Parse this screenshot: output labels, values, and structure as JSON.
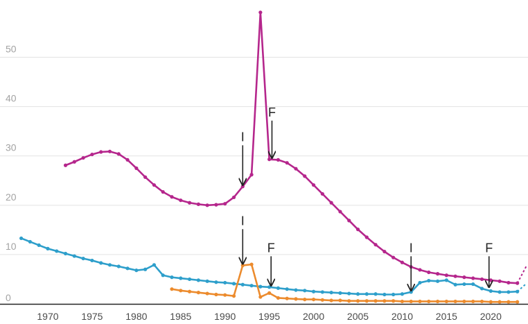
{
  "chart_data": {
    "type": "line",
    "title": "",
    "xlabel": "",
    "ylabel": "",
    "xlim": [
      1965.7,
      2024.2
    ],
    "ylim": [
      0,
      59.5
    ],
    "xticks": [
      1970,
      1975,
      1980,
      1985,
      1990,
      1995,
      2000,
      2005,
      2010,
      2015,
      2020
    ],
    "yticks": [
      0,
      10,
      20,
      30,
      40,
      50
    ],
    "grid": true,
    "series": [
      {
        "name": "magenta",
        "color": "#b5268c",
        "x": [
          1972,
          1973,
          1974,
          1975,
          1976,
          1977,
          1978,
          1979,
          1980,
          1981,
          1982,
          1983,
          1984,
          1985,
          1986,
          1987,
          1988,
          1989,
          1990,
          1991,
          1992,
          1993,
          1994,
          1995,
          1996,
          1997,
          1998,
          1999,
          2000,
          2001,
          2002,
          2003,
          2004,
          2005,
          2006,
          2007,
          2008,
          2009,
          2010,
          2011,
          2012,
          2013,
          2014,
          2015,
          2016,
          2017,
          2018,
          2019,
          2020,
          2021,
          2022,
          2023
        ],
        "values": [
          28.1,
          28.8,
          29.6,
          30.3,
          30.8,
          30.9,
          30.4,
          29.2,
          27.5,
          25.7,
          24.1,
          22.7,
          21.7,
          21.0,
          20.5,
          20.2,
          20.0,
          20.1,
          20.3,
          21.6,
          23.8,
          26.2,
          59.1,
          29.3,
          29.2,
          28.6,
          27.4,
          25.9,
          24.1,
          22.3,
          20.5,
          18.7,
          16.9,
          15.1,
          13.5,
          12.0,
          10.6,
          9.4,
          8.4,
          7.5,
          6.9,
          6.4,
          6.1,
          5.8,
          5.6,
          5.4,
          5.2,
          5.0,
          4.8,
          4.6,
          4.3,
          4.2
        ]
      },
      {
        "name": "blue",
        "color": "#2e9fcb",
        "x": [
          1967,
          1968,
          1969,
          1970,
          1971,
          1972,
          1973,
          1974,
          1975,
          1976,
          1977,
          1978,
          1979,
          1980,
          1981,
          1982,
          1983,
          1984,
          1985,
          1986,
          1987,
          1988,
          1989,
          1990,
          1991,
          1992,
          1993,
          1994,
          1995,
          1996,
          1997,
          1998,
          1999,
          2000,
          2001,
          2002,
          2003,
          2004,
          2005,
          2006,
          2007,
          2008,
          2009,
          2010,
          2011,
          2012,
          2013,
          2014,
          2015,
          2016,
          2017,
          2018,
          2019,
          2020,
          2021,
          2022,
          2023
        ],
        "values": [
          13.3,
          12.6,
          11.9,
          11.2,
          10.7,
          10.2,
          9.7,
          9.2,
          8.8,
          8.3,
          7.9,
          7.6,
          7.2,
          6.8,
          7.0,
          7.9,
          5.8,
          5.4,
          5.2,
          5.0,
          4.8,
          4.6,
          4.4,
          4.3,
          4.1,
          3.9,
          3.7,
          3.5,
          3.4,
          3.2,
          3.0,
          2.8,
          2.7,
          2.5,
          2.4,
          2.3,
          2.2,
          2.1,
          2.0,
          2.0,
          2.0,
          1.9,
          1.9,
          2.0,
          2.4,
          4.3,
          4.7,
          4.6,
          4.8,
          3.9,
          4.0,
          4.0,
          3.1,
          2.6,
          2.4,
          2.4,
          2.5
        ]
      },
      {
        "name": "orange",
        "color": "#ec8b2d",
        "x": [
          1984,
          1985,
          1986,
          1987,
          1988,
          1989,
          1990,
          1991,
          1992,
          1993,
          1994,
          1995,
          1996,
          1997,
          1998,
          1999,
          2000,
          2001,
          2002,
          2003,
          2004,
          2005,
          2006,
          2007,
          2008,
          2009,
          2010,
          2011,
          2012,
          2013,
          2014,
          2015,
          2016,
          2017,
          2018,
          2019,
          2020,
          2021,
          2022,
          2023
        ],
        "values": [
          3.0,
          2.7,
          2.5,
          2.3,
          2.1,
          1.9,
          1.8,
          1.6,
          7.8,
          8.0,
          1.4,
          2.2,
          1.2,
          1.1,
          1.0,
          0.9,
          0.9,
          0.8,
          0.7,
          0.7,
          0.6,
          0.6,
          0.6,
          0.6,
          0.6,
          0.6,
          0.5,
          0.5,
          0.5,
          0.5,
          0.5,
          0.5,
          0.5,
          0.5,
          0.5,
          0.5,
          0.4,
          0.4,
          0.4,
          0.4
        ]
      }
    ],
    "projections": [
      {
        "series": "magenta",
        "x": [
          2023,
          2024
        ],
        "values": [
          4.2,
          7.6
        ]
      },
      {
        "series": "blue",
        "x": [
          2023,
          2024
        ],
        "values": [
          2.5,
          4.1
        ]
      }
    ],
    "annotations": [
      {
        "label": "I",
        "x": 1992,
        "y_text": 33.0,
        "y_tip": 23.8
      },
      {
        "label": "F",
        "x": 1995.3,
        "y_text": 38.0,
        "y_tip": 29.3
      },
      {
        "label": "I",
        "x": 1992,
        "y_text": 16.0,
        "y_tip": 7.8
      },
      {
        "label": "F",
        "x": 1995.2,
        "y_text": 10.5,
        "y_tip": 3.4
      },
      {
        "label": "I",
        "x": 2011,
        "y_text": 10.5,
        "y_tip": 2.4
      },
      {
        "label": "F",
        "x": 2019.8,
        "y_text": 10.5,
        "y_tip": 3.1
      }
    ]
  }
}
